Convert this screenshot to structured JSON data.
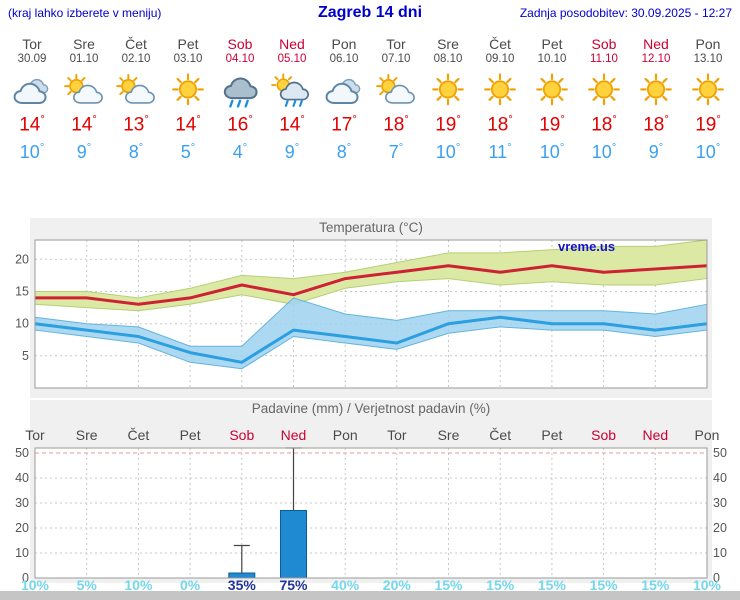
{
  "header": {
    "hint": "(kraj lahko izberete v meniju)",
    "title": "Zagreb 14 dni",
    "updated": "Zadnja posodobitev: 30.09.2025 - 12:27"
  },
  "labels": {
    "degree": "°"
  },
  "colors": {
    "header_blue": "#0000cc",
    "day_gray": "#4a4a4a",
    "weekend_red": "#cc0033",
    "tmax_red": "#e30000",
    "tmin_blue": "#3aa0f0",
    "chart_title_gray": "#666666",
    "chart_bg": "#f0f0f0",
    "grid_gray": "#c8c8c8",
    "grid_red": "#e89898",
    "tmax_line": "#cc2233",
    "tmax_band": "#dce9a5",
    "tmax_band_edge": "#b6cf74",
    "tmin_line": "#2b9fe0",
    "tmin_band": "#9ed2ee",
    "tmin_band_edge": "#63b4de",
    "bar_fill": "#1f8ad2",
    "bar_edge": "#0d5c9a",
    "whisker_dark": "#444444",
    "pct_cyan": "#74d8ea",
    "pct_navy": "#223399",
    "watermark_blue": "#1111cc",
    "footer_gray": "#c5c5c5"
  },
  "days": [
    {
      "name": "Tor",
      "date": "30.09",
      "weekend": false,
      "icon": "cloudy",
      "tmax": "14",
      "tmin": "10"
    },
    {
      "name": "Sre",
      "date": "01.10",
      "weekend": false,
      "icon": "partly",
      "tmax": "14",
      "tmin": "9"
    },
    {
      "name": "Čet",
      "date": "02.10",
      "weekend": false,
      "icon": "partly",
      "tmax": "13",
      "tmin": "8"
    },
    {
      "name": "Pet",
      "date": "03.10",
      "weekend": false,
      "icon": "sunny",
      "tmax": "14",
      "tmin": "5"
    },
    {
      "name": "Sob",
      "date": "04.10",
      "weekend": true,
      "icon": "rain",
      "tmax": "16",
      "tmin": "4"
    },
    {
      "name": "Ned",
      "date": "05.10",
      "weekend": true,
      "icon": "sunrain",
      "tmax": "14",
      "tmin": "9"
    },
    {
      "name": "Pon",
      "date": "06.10",
      "weekend": false,
      "icon": "cloudy",
      "tmax": "17",
      "tmin": "8"
    },
    {
      "name": "Tor",
      "date": "07.10",
      "weekend": false,
      "icon": "partly",
      "tmax": "18",
      "tmin": "7"
    },
    {
      "name": "Sre",
      "date": "08.10",
      "weekend": false,
      "icon": "sunny",
      "tmax": "19",
      "tmin": "10"
    },
    {
      "name": "Čet",
      "date": "09.10",
      "weekend": false,
      "icon": "sunny",
      "tmax": "18",
      "tmin": "11"
    },
    {
      "name": "Pet",
      "date": "10.10",
      "weekend": false,
      "icon": "sunny",
      "tmax": "19",
      "tmin": "10"
    },
    {
      "name": "Sob",
      "date": "11.10",
      "weekend": true,
      "icon": "sunny",
      "tmax": "18",
      "tmin": "10"
    },
    {
      "name": "Ned",
      "date": "12.10",
      "weekend": true,
      "icon": "sunny",
      "tmax": "18",
      "tmin": "9"
    },
    {
      "name": "Pon",
      "date": "13.10",
      "weekend": false,
      "icon": "sunny",
      "tmax": "19",
      "tmin": "10"
    }
  ],
  "chart_data": [
    {
      "type": "line",
      "title": "Temperatura (°C)",
      "watermark": "vreme.us",
      "categories": [
        "Tor",
        "Sre",
        "Čet",
        "Pet",
        "Sob",
        "Ned",
        "Pon",
        "Tor",
        "Sre",
        "Čet",
        "Pet",
        "Sob",
        "Ned",
        "Pon"
      ],
      "ylim": [
        0,
        23
      ],
      "yticks": [
        5,
        10,
        15,
        20
      ],
      "grid": true,
      "legend": "none",
      "series": [
        {
          "name": "t_max",
          "values": [
            14,
            14,
            13,
            14,
            16,
            14.5,
            17,
            18,
            19,
            18,
            19,
            18,
            18.5,
            19
          ]
        },
        {
          "name": "t_max_upper",
          "values": [
            15,
            15,
            14,
            15.5,
            17.5,
            17,
            18,
            19.5,
            21,
            21,
            21.5,
            22,
            22,
            23
          ]
        },
        {
          "name": "t_max_lower",
          "values": [
            13,
            12.5,
            12,
            13,
            14.5,
            13,
            15.5,
            16.5,
            17,
            16,
            16.5,
            16,
            16,
            17
          ]
        },
        {
          "name": "t_min",
          "values": [
            10,
            9,
            8,
            5.5,
            4,
            9,
            8,
            7,
            10,
            11,
            10,
            10,
            9,
            10
          ]
        },
        {
          "name": "t_min_upper",
          "values": [
            11,
            10,
            9.5,
            6.5,
            6.5,
            14,
            11.5,
            10.5,
            12,
            12,
            12,
            12,
            11.5,
            13
          ]
        },
        {
          "name": "t_min_lower",
          "values": [
            9,
            8,
            7,
            4,
            3,
            8,
            7,
            6,
            8.5,
            9.5,
            9,
            9,
            8,
            9
          ]
        }
      ]
    },
    {
      "type": "bar",
      "title": "Padavine (mm) / Verjetnost padavin (%)",
      "categories": [
        "Tor",
        "Sre",
        "Čet",
        "Pet",
        "Sob",
        "Ned",
        "Pon",
        "Tor",
        "Sre",
        "Čet",
        "Pet",
        "Sob",
        "Ned",
        "Pon"
      ],
      "ylim": [
        0,
        52
      ],
      "yticks": [
        0,
        10,
        20,
        30,
        40,
        50
      ],
      "grid": true,
      "precipitation_mm": [
        0,
        0,
        0,
        0,
        2,
        27,
        0,
        0,
        0,
        0,
        0,
        0,
        0,
        0
      ],
      "precipitation_max_mm": [
        0,
        0,
        0,
        0,
        13,
        52,
        0,
        0,
        0,
        0,
        0,
        0,
        0,
        0
      ],
      "probability_pct": [
        "10%",
        "5%",
        "10%",
        "0%",
        "35%",
        "75%",
        "40%",
        "20%",
        "15%",
        "15%",
        "15%",
        "15%",
        "15%",
        "10%"
      ]
    }
  ]
}
